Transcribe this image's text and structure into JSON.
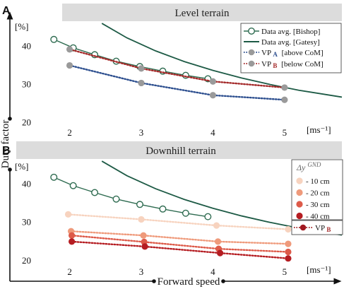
{
  "figure": {
    "y_axis_label": "Duty factor",
    "x_axis_label": "Forward speed"
  },
  "chart_data": [
    {
      "panel_letter": "A",
      "type": "line",
      "title": "Level terrain",
      "ylabel_unit": "[%]",
      "xlabel_unit": "[ms⁻¹]",
      "xlim": [
        1.6,
        5.8
      ],
      "ylim": [
        19,
        46
      ],
      "xticks": [
        2,
        3,
        4,
        5
      ],
      "yticks": [
        20,
        30,
        40
      ],
      "legend": {
        "position": "top-right",
        "entries": [
          "Data avg. [Bishop]",
          "Data avg. [Gatesy]",
          "VP",
          "VP"
        ],
        "vp_subscripts": [
          "A",
          "B"
        ],
        "vp_notes": [
          "[above CoM]",
          "[below CoM]"
        ]
      },
      "series": [
        {
          "name": "Data avg. [Bishop]",
          "style": "line-open-circles",
          "color": "#2e6b50",
          "x": [
            1.78,
            2.05,
            2.35,
            2.65,
            2.98,
            3.3,
            3.62,
            3.93
          ],
          "y": [
            41.6,
            39.4,
            37.6,
            35.9,
            34.5,
            33.3,
            32.2,
            31.3
          ]
        },
        {
          "name": "Data avg. [Gatesy]",
          "style": "line",
          "color": "#1d5a45",
          "x": [
            2.45,
            2.8,
            3.2,
            3.6,
            4.0,
            4.4,
            4.8,
            5.2,
            5.6,
            5.8
          ],
          "y": [
            45.8,
            42.0,
            38.6,
            35.8,
            33.5,
            31.5,
            29.8,
            28.3,
            27.1,
            26.5
          ]
        },
        {
          "name": "VP A [above CoM]",
          "style": "dotted-filled",
          "color": "#2d4f8f",
          "x": [
            2.0,
            3.0,
            4.0,
            5.0
          ],
          "y": [
            34.8,
            30.2,
            27.0,
            25.8
          ]
        },
        {
          "name": "VP B [below CoM]",
          "style": "dotted-filled",
          "color": "#a42a2a",
          "x": [
            2.0,
            3.0,
            4.0,
            5.0
          ],
          "y": [
            39.0,
            34.0,
            30.6,
            29.0
          ]
        }
      ]
    },
    {
      "panel_letter": "B",
      "type": "line",
      "title": "Downhill terrain",
      "ylabel_unit": "[%]",
      "xlabel_unit": "[ms⁻¹]",
      "xlim": [
        1.6,
        5.8
      ],
      "ylim": [
        18.5,
        46
      ],
      "xticks": [
        2,
        3,
        4,
        5
      ],
      "yticks": [
        20,
        30,
        40
      ],
      "legend": {
        "position": "right",
        "title": "Δy",
        "title_superscript": "GND",
        "entries": [
          "- 10 cm",
          "- 20 cm",
          "- 30 cm",
          "- 40 cm"
        ],
        "entry_colors": [
          "#f7d3bf",
          "#ef9a7b",
          "#dd5a49",
          "#b51d22"
        ],
        "vp_label": "VP",
        "vp_subscript": "B"
      },
      "series": [
        {
          "name": "Data avg. [Bishop]",
          "style": "line-open-circles",
          "color": "#2e6b50",
          "x": [
            1.78,
            2.05,
            2.35,
            2.65,
            2.98,
            3.3,
            3.62,
            3.93
          ],
          "y": [
            41.6,
            39.4,
            37.6,
            35.9,
            34.5,
            33.3,
            32.2,
            31.3
          ]
        },
        {
          "name": "Data avg. [Gatesy]",
          "style": "line",
          "color": "#1d5a45",
          "x": [
            2.45,
            2.8,
            3.2,
            3.6,
            4.0,
            4.4,
            4.8,
            5.2,
            5.6,
            5.8
          ],
          "y": [
            45.8,
            42.0,
            38.6,
            35.8,
            33.5,
            31.5,
            29.8,
            28.3,
            27.1,
            26.5
          ]
        },
        {
          "name": "- 10 cm",
          "style": "dotted-filled",
          "color": "#f7d3bf",
          "x": [
            1.98,
            3.0,
            4.05,
            5.05
          ],
          "y": [
            31.9,
            30.6,
            29.0,
            28.0
          ]
        },
        {
          "name": "- 20 cm",
          "style": "dotted-filled",
          "color": "#ef9a7b",
          "x": [
            2.02,
            3.03,
            4.07,
            5.05
          ],
          "y": [
            27.5,
            26.4,
            24.8,
            24.2
          ]
        },
        {
          "name": "- 30 cm",
          "style": "dotted-filled",
          "color": "#dd5a49",
          "x": [
            2.03,
            3.04,
            4.08,
            5.05
          ],
          "y": [
            26.4,
            24.7,
            22.9,
            22.1
          ]
        },
        {
          "name": "- 40 cm",
          "style": "dotted-filled",
          "color": "#b51d22",
          "x": [
            2.03,
            3.05,
            4.1,
            5.05
          ],
          "y": [
            24.8,
            23.5,
            21.8,
            20.4
          ]
        }
      ]
    }
  ]
}
